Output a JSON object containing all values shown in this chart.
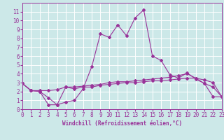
{
  "bg_color": "#cce8e8",
  "grid_color": "#ffffff",
  "line_color": "#993399",
  "xlabel": "Windchill (Refroidissement éolien,°C)",
  "xlim": [
    0,
    23
  ],
  "ylim": [
    0,
    12
  ],
  "xticks": [
    0,
    1,
    2,
    3,
    4,
    5,
    6,
    7,
    8,
    9,
    10,
    11,
    12,
    13,
    14,
    15,
    16,
    17,
    18,
    19,
    20,
    21,
    22,
    23
  ],
  "yticks": [
    0,
    1,
    2,
    3,
    4,
    5,
    6,
    7,
    8,
    9,
    10,
    11
  ],
  "line1_x": [
    0,
    1,
    2,
    3,
    4,
    5,
    6,
    7,
    8,
    9,
    10,
    11,
    12,
    13,
    14,
    15,
    16,
    17,
    18,
    19,
    20,
    21,
    22,
    23
  ],
  "line1_y": [
    2.9,
    2.1,
    2.0,
    0.5,
    0.5,
    0.8,
    1.0,
    2.3,
    4.8,
    8.5,
    8.1,
    9.5,
    8.3,
    10.3,
    11.2,
    6.0,
    5.5,
    3.9,
    3.5,
    4.1,
    3.4,
    2.9,
    1.4,
    1.4
  ],
  "line2_x": [
    0,
    1,
    2,
    3,
    4,
    5,
    6,
    7,
    8,
    9,
    10,
    11,
    12,
    13,
    14,
    15,
    16,
    17,
    18,
    19,
    20,
    21,
    22,
    23
  ],
  "line2_y": [
    2.9,
    2.1,
    2.1,
    2.1,
    2.2,
    2.5,
    2.5,
    2.6,
    2.7,
    2.8,
    3.0,
    3.1,
    3.1,
    3.2,
    3.3,
    3.4,
    3.5,
    3.6,
    3.8,
    4.0,
    3.5,
    3.3,
    3.0,
    1.4
  ],
  "line3_x": [
    0,
    1,
    2,
    3,
    4,
    5,
    6,
    7,
    8,
    9,
    10,
    11,
    12,
    13,
    14,
    15,
    16,
    17,
    18,
    19,
    20,
    21,
    22,
    23
  ],
  "line3_y": [
    2.9,
    2.1,
    2.0,
    1.3,
    0.5,
    2.5,
    2.3,
    2.5,
    2.5,
    2.7,
    2.8,
    2.9,
    3.0,
    3.0,
    3.1,
    3.2,
    3.2,
    3.3,
    3.4,
    3.5,
    3.5,
    2.9,
    2.5,
    1.4
  ],
  "marker": "D",
  "markersize": 2.0,
  "linewidth": 0.8,
  "tick_fontsize": 5.5,
  "xlabel_fontsize": 5.5
}
